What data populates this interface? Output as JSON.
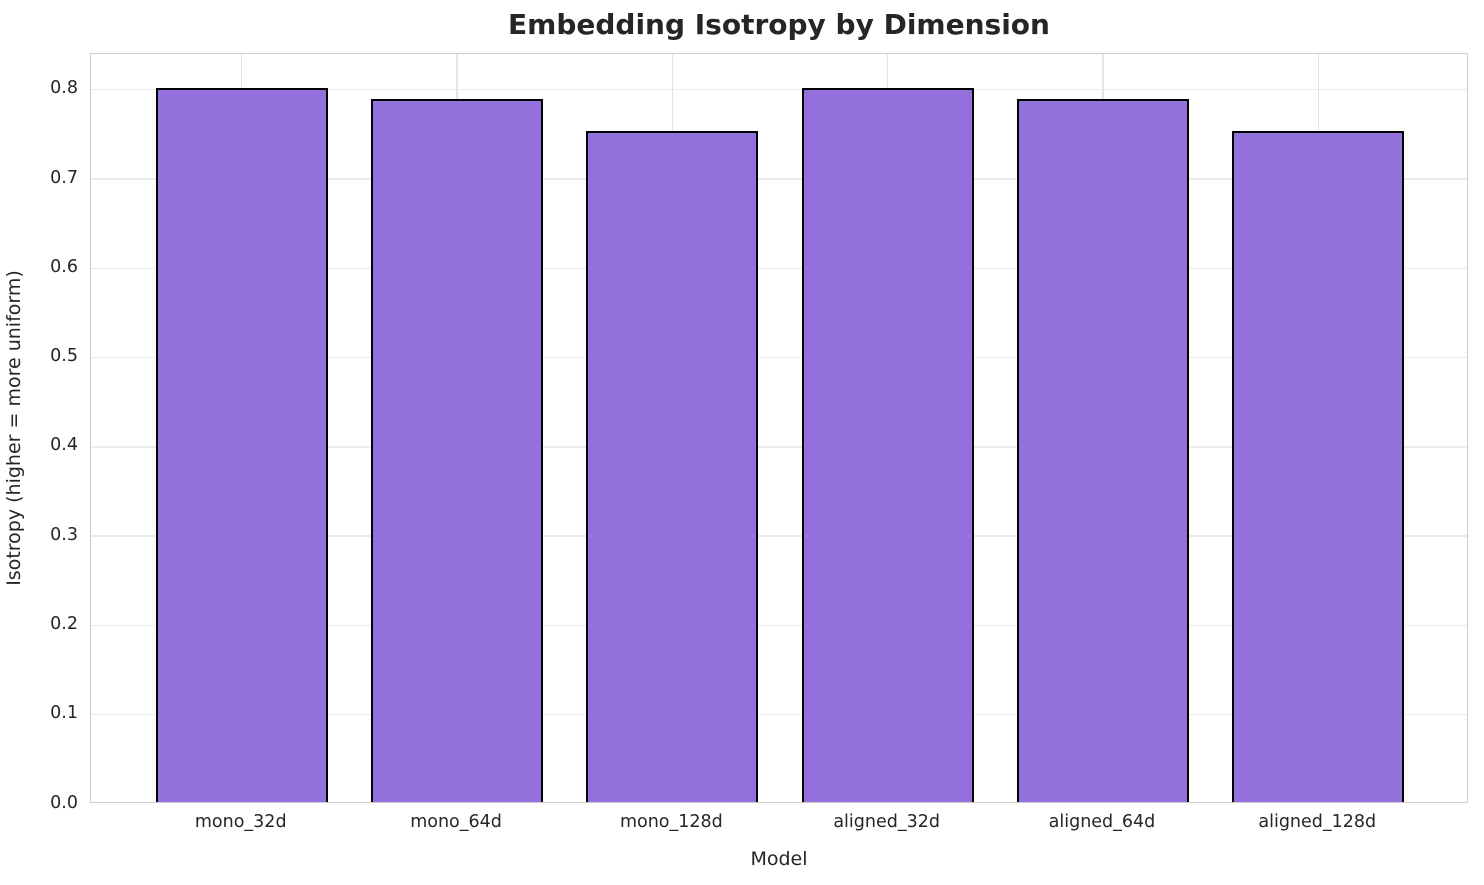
{
  "chart_data": {
    "type": "bar",
    "title": "Embedding Isotropy by Dimension",
    "xlabel": "Model",
    "ylabel": "Isotropy (higher = more uniform)",
    "categories": [
      "mono_32d",
      "mono_64d",
      "mono_128d",
      "aligned_32d",
      "aligned_64d",
      "aligned_128d"
    ],
    "values": [
      0.8,
      0.787,
      0.752,
      0.8,
      0.787,
      0.752
    ],
    "ylim": [
      0,
      0.84
    ],
    "yticks": [
      "0.0",
      "0.1",
      "0.2",
      "0.3",
      "0.4",
      "0.5",
      "0.6",
      "0.7",
      "0.8"
    ],
    "xlim": [
      -0.7,
      5.7
    ],
    "bar_width_units": 0.8,
    "grid": "on",
    "legend": "none",
    "colors": {
      "bar_fill": "#9370db",
      "bar_edge": "#000000",
      "grid_h": "#ebebeb",
      "grid_v": "#e4e4e4",
      "spine": "#cccccc",
      "text": "#262626",
      "background": "#ffffff"
    }
  }
}
